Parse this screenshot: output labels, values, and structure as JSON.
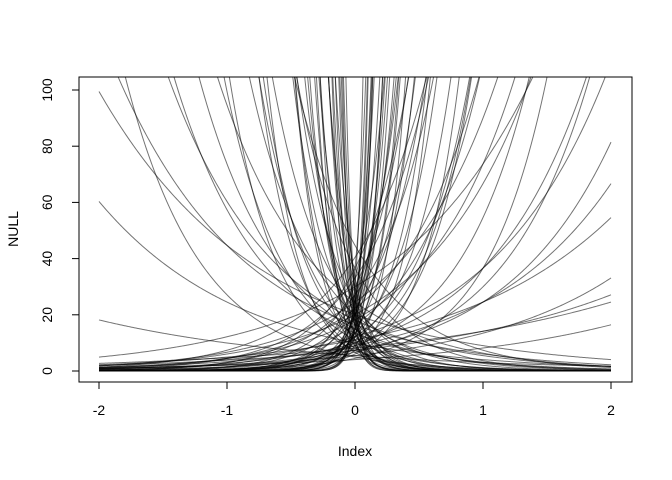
{
  "chart_data": {
    "type": "line",
    "title": "",
    "xlabel": "Index",
    "ylabel": "NULL",
    "xlim": [
      -2,
      2
    ],
    "ylim": [
      0,
      100
    ],
    "x_ticks": [
      {
        "value": -2,
        "label": "-2"
      },
      {
        "value": -1,
        "label": "-1"
      },
      {
        "value": 0,
        "label": "0"
      },
      {
        "value": 1,
        "label": "1"
      },
      {
        "value": 2,
        "label": "2"
      }
    ],
    "y_ticks": [
      {
        "value": 0,
        "label": "0"
      },
      {
        "value": 20,
        "label": "20"
      },
      {
        "value": 40,
        "label": "40"
      },
      {
        "value": 60,
        "label": "60"
      },
      {
        "value": 80,
        "label": "80"
      },
      {
        "value": 100,
        "label": "100"
      }
    ],
    "grid": false,
    "legend": "none",
    "line_color": "#000000",
    "line_opacity": 0.55,
    "curve_family": "y = exp(a + b * x)",
    "series": [
      {
        "a": 2.1,
        "b": 0.55
      },
      {
        "a": 1.4,
        "b": 0.7
      },
      {
        "a": 1.7,
        "b": 0.9
      },
      {
        "a": 2.3,
        "b": -0.9
      },
      {
        "a": 3.0,
        "b": -0.8
      },
      {
        "a": 3.0,
        "b": 1.2
      },
      {
        "a": 2.9,
        "b": 1.4
      },
      {
        "a": 3.1,
        "b": 1.6
      },
      {
        "a": 3.2,
        "b": -1.35
      },
      {
        "a": 2.6,
        "b": -1.45
      },
      {
        "a": 2.2,
        "b": 1.8
      },
      {
        "a": 2.8,
        "b": 1.9
      },
      {
        "a": 3.3,
        "b": 2.2
      },
      {
        "a": 3.0,
        "b": -2.0
      },
      {
        "a": 2.5,
        "b": 2.4
      },
      {
        "a": 3.1,
        "b": 2.8
      },
      {
        "a": 2.7,
        "b": -2.6
      },
      {
        "a": 3.4,
        "b": 3.0
      },
      {
        "a": 3.0,
        "b": 3.5
      },
      {
        "a": 3.2,
        "b": -3.2
      },
      {
        "a": 3.6,
        "b": 2.5
      },
      {
        "a": 2.4,
        "b": 3.0
      },
      {
        "a": 2.9,
        "b": -3.6
      },
      {
        "a": 3.3,
        "b": 4.0
      },
      {
        "a": 3.0,
        "b": -4.2
      },
      {
        "a": 3.2,
        "b": 4.5
      },
      {
        "a": 2.8,
        "b": -5.0
      },
      {
        "a": 3.5,
        "b": 5.0
      },
      {
        "a": 3.1,
        "b": -5.5
      },
      {
        "a": 2.6,
        "b": 5.8
      },
      {
        "a": 3.4,
        "b": -6.0
      },
      {
        "a": 3.0,
        "b": 6.5
      },
      {
        "a": 3.2,
        "b": -7.0
      },
      {
        "a": 2.7,
        "b": 7.2
      },
      {
        "a": 3.5,
        "b": -7.5
      },
      {
        "a": 3.1,
        "b": 8.0
      },
      {
        "a": 2.9,
        "b": -8.5
      },
      {
        "a": 3.3,
        "b": 9.0
      },
      {
        "a": 3.0,
        "b": -9.5
      },
      {
        "a": 2.5,
        "b": 10.0
      },
      {
        "a": 3.4,
        "b": -10.5
      },
      {
        "a": 3.2,
        "b": 11.0
      },
      {
        "a": 2.8,
        "b": -12.0
      },
      {
        "a": 3.6,
        "b": 12.5
      },
      {
        "a": 3.0,
        "b": -13.0
      },
      {
        "a": 2.7,
        "b": 14.0
      },
      {
        "a": 3.3,
        "b": -15.0
      },
      {
        "a": 3.1,
        "b": 16.0
      },
      {
        "a": 2.9,
        "b": -18.0
      },
      {
        "a": 3.4,
        "b": 20.0
      },
      {
        "a": 2.0,
        "b": 4.5
      },
      {
        "a": 2.2,
        "b": -5.2
      },
      {
        "a": 1.8,
        "b": 3.5
      },
      {
        "a": 2.4,
        "b": -2.2
      },
      {
        "a": 2.6,
        "b": 6.0
      },
      {
        "a": 2.3,
        "b": -7.8
      },
      {
        "a": 2.1,
        "b": 2.8
      },
      {
        "a": 2.5,
        "b": -3.0
      },
      {
        "a": 2.7,
        "b": 9.0
      },
      {
        "a": 1.9,
        "b": -4.0
      },
      {
        "a": 3.7,
        "b": 1.7
      },
      {
        "a": 3.8,
        "b": -1.8
      },
      {
        "a": 3.5,
        "b": 2.0
      },
      {
        "a": 3.6,
        "b": -2.3
      },
      {
        "a": 2.0,
        "b": 1.2
      },
      {
        "a": 1.6,
        "b": -1.7
      },
      {
        "a": 2.2,
        "b": 1.0
      },
      {
        "a": 1.5,
        "b": 2.1
      },
      {
        "a": 2.4,
        "b": 0.8
      },
      {
        "a": 2.8,
        "b": -1.0
      },
      {
        "a": 1.9,
        "b": 1.5
      },
      {
        "a": 2.6,
        "b": -6.5
      },
      {
        "a": 3.0,
        "b": 7.0
      },
      {
        "a": 2.2,
        "b": -9.0
      },
      {
        "a": 3.2,
        "b": 11.5
      },
      {
        "a": 2.4,
        "b": -12.5
      },
      {
        "a": 2.8,
        "b": 13.5
      },
      {
        "a": 3.1,
        "b": -14.5
      },
      {
        "a": 2.9,
        "b": 17.0
      },
      {
        "a": 3.3,
        "b": -19.0
      },
      {
        "a": 2.5,
        "b": 3.8
      },
      {
        "a": 2.1,
        "b": -3.4
      },
      {
        "a": 2.3,
        "b": 2.6
      },
      {
        "a": 2.0,
        "b": -2.7
      },
      {
        "a": 2.7,
        "b": 4.2
      },
      {
        "a": 2.4,
        "b": -4.8
      },
      {
        "a": 3.0,
        "b": 5.4
      },
      {
        "a": 2.6,
        "b": -5.8
      },
      {
        "a": 2.2,
        "b": 6.2
      },
      {
        "a": 2.8,
        "b": -6.8
      },
      {
        "a": 3.2,
        "b": 1.3
      },
      {
        "a": 2.9,
        "b": -1.2
      },
      {
        "a": 2.5,
        "b": 1.1
      },
      {
        "a": 2.7,
        "b": -1.6
      },
      {
        "a": 3.4,
        "b": 0.9
      },
      {
        "a": 2.3,
        "b": 1.3
      },
      {
        "a": 1.7,
        "b": -0.6
      },
      {
        "a": 2.0,
        "b": 0.65
      },
      {
        "a": 3.1,
        "b": -2.4
      },
      {
        "a": 2.6,
        "b": 3.2
      }
    ]
  }
}
